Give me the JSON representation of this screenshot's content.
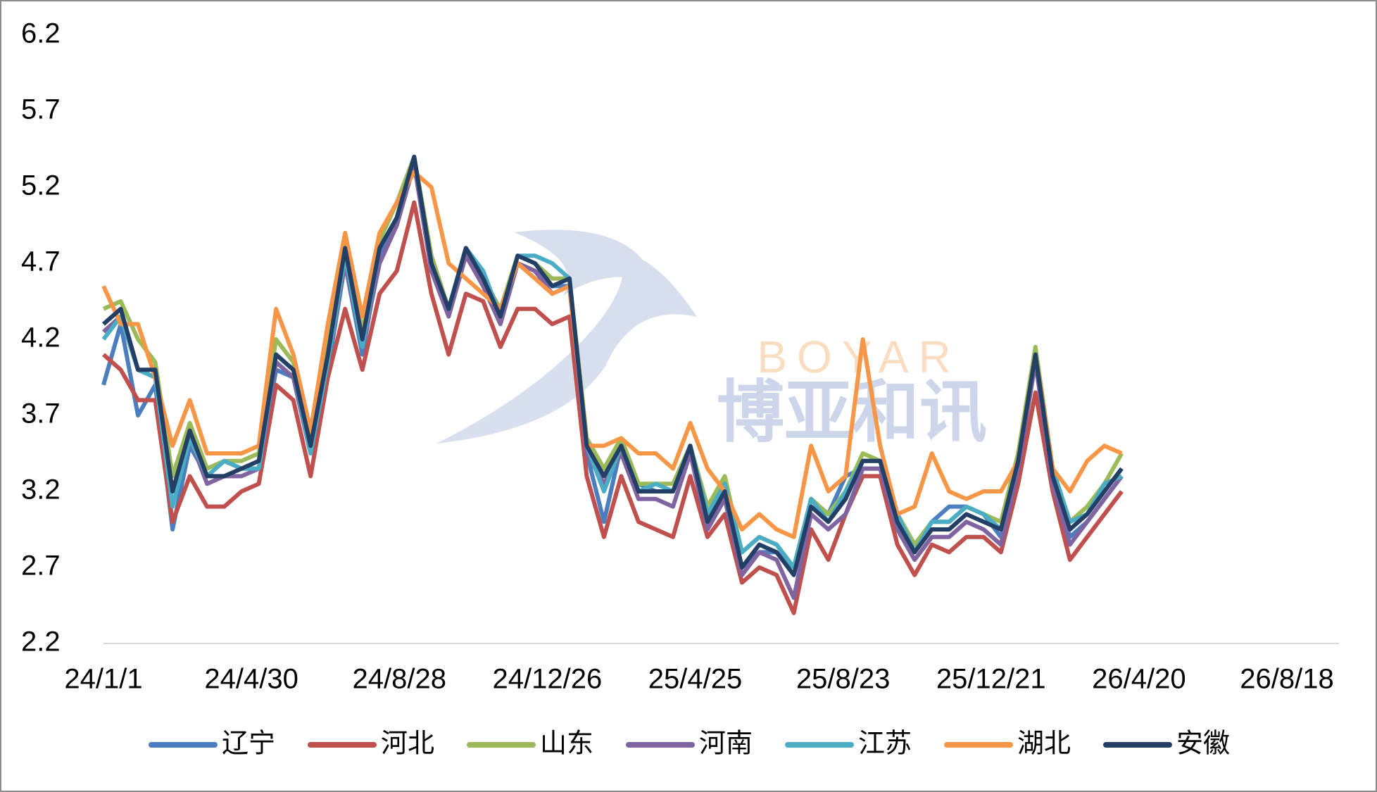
{
  "chart_data": {
    "type": "line",
    "watermark": [
      "BOYAR",
      "博亚和讯"
    ],
    "x": [
      "24/1/1",
      "24/1/15",
      "24/1/29",
      "24/2/12",
      "24/2/26",
      "24/3/11",
      "24/3/25",
      "24/4/8",
      "24/4/22",
      "24/5/6",
      "24/5/20",
      "24/6/3",
      "24/6/17",
      "24/7/1",
      "24/7/15",
      "24/7/29",
      "24/8/12",
      "24/8/26",
      "24/9/9",
      "24/9/23",
      "24/10/7",
      "24/10/21",
      "24/11/4",
      "24/11/18",
      "24/12/2",
      "24/12/16",
      "24/12/30",
      "25/1/13",
      "25/1/27",
      "25/2/10",
      "25/2/24",
      "25/3/10",
      "25/3/24",
      "25/4/7",
      "25/4/21",
      "25/5/5",
      "25/5/19",
      "25/6/2",
      "25/6/16",
      "25/6/30",
      "25/7/14",
      "25/7/28",
      "25/8/11",
      "25/8/25",
      "25/9/8",
      "25/9/22",
      "25/10/6",
      "25/10/20",
      "25/11/3",
      "25/11/17",
      "25/12/1",
      "25/12/15",
      "25/12/29",
      "26/1/12",
      "26/1/26",
      "26/2/9",
      "26/2/23",
      "26/3/9",
      "26/3/23",
      "26/4/6"
    ],
    "series": [
      {
        "name": "辽宁",
        "color": "#4a7ebf",
        "values": [
          3.9,
          4.3,
          3.7,
          3.9,
          2.95,
          3.5,
          3.3,
          3.4,
          3.35,
          3.35,
          4.0,
          3.95,
          3.45,
          4.0,
          4.7,
          4.1,
          4.75,
          5.0,
          5.4,
          4.65,
          4.4,
          4.8,
          4.6,
          4.35,
          4.7,
          4.65,
          4.55,
          4.55,
          3.45,
          3.0,
          3.5,
          3.25,
          3.2,
          3.2,
          3.45,
          3.05,
          3.2,
          2.7,
          2.8,
          2.8,
          2.7,
          3.15,
          3.05,
          3.3,
          3.35,
          3.35,
          3.05,
          2.85,
          3.0,
          3.1,
          3.1,
          3.05,
          2.9,
          3.35,
          4.1,
          3.3,
          2.9,
          3.0,
          3.15,
          3.3
        ]
      },
      {
        "name": "河北",
        "color": "#c0504d",
        "values": [
          4.1,
          4.0,
          3.8,
          3.8,
          3.0,
          3.3,
          3.1,
          3.1,
          3.2,
          3.25,
          3.9,
          3.8,
          3.3,
          3.95,
          4.4,
          4.0,
          4.5,
          4.65,
          5.1,
          4.5,
          4.1,
          4.5,
          4.45,
          4.15,
          4.4,
          4.4,
          4.3,
          4.35,
          3.3,
          2.9,
          3.3,
          3.0,
          2.95,
          2.9,
          3.3,
          2.9,
          3.05,
          2.6,
          2.7,
          2.65,
          2.4,
          2.95,
          2.75,
          3.05,
          3.3,
          3.3,
          2.85,
          2.65,
          2.85,
          2.8,
          2.9,
          2.9,
          2.8,
          3.25,
          3.85,
          3.2,
          2.75,
          2.9,
          3.05,
          3.2
        ]
      },
      {
        "name": "山东",
        "color": "#9bbb59",
        "values": [
          4.4,
          4.45,
          4.2,
          4.05,
          3.3,
          3.65,
          3.35,
          3.4,
          3.4,
          3.45,
          4.2,
          4.05,
          3.55,
          4.15,
          4.85,
          4.25,
          4.85,
          5.1,
          5.4,
          4.75,
          4.4,
          4.8,
          4.6,
          4.4,
          4.75,
          4.7,
          4.6,
          4.6,
          3.55,
          3.35,
          3.55,
          3.25,
          3.25,
          3.25,
          3.5,
          3.1,
          3.3,
          2.8,
          2.9,
          2.85,
          2.7,
          3.15,
          3.05,
          3.2,
          3.45,
          3.4,
          3.05,
          2.85,
          3.0,
          3.0,
          3.1,
          3.05,
          3.0,
          3.45,
          4.15,
          3.35,
          3.0,
          3.1,
          3.25,
          3.45
        ]
      },
      {
        "name": "河南",
        "color": "#8064a2",
        "values": [
          4.25,
          4.35,
          4.0,
          3.95,
          3.2,
          3.55,
          3.25,
          3.3,
          3.3,
          3.35,
          4.05,
          3.95,
          3.45,
          4.05,
          4.7,
          4.15,
          4.7,
          4.95,
          5.35,
          4.65,
          4.35,
          4.75,
          4.55,
          4.3,
          4.7,
          4.65,
          4.5,
          4.55,
          3.45,
          3.25,
          3.45,
          3.15,
          3.15,
          3.1,
          3.45,
          2.95,
          3.15,
          2.65,
          2.8,
          2.75,
          2.5,
          3.05,
          2.95,
          3.05,
          3.35,
          3.35,
          2.95,
          2.75,
          2.9,
          2.9,
          3.0,
          2.95,
          2.85,
          3.35,
          4.05,
          3.25,
          2.85,
          3.0,
          3.15,
          3.3
        ]
      },
      {
        "name": "江苏",
        "color": "#4bacc6",
        "values": [
          4.2,
          4.35,
          4.0,
          3.95,
          3.1,
          3.55,
          3.3,
          3.4,
          3.35,
          3.35,
          4.1,
          4.0,
          3.45,
          4.05,
          4.75,
          4.15,
          4.8,
          5.0,
          5.4,
          4.7,
          4.4,
          4.8,
          4.65,
          4.35,
          4.75,
          4.75,
          4.7,
          4.6,
          3.5,
          3.2,
          3.5,
          3.2,
          3.25,
          3.2,
          3.5,
          3.05,
          3.25,
          2.8,
          2.9,
          2.85,
          2.7,
          3.15,
          3.0,
          3.2,
          3.4,
          3.4,
          3.05,
          2.8,
          3.0,
          3.0,
          3.1,
          3.05,
          2.95,
          3.4,
          4.1,
          3.35,
          3.0,
          3.05,
          3.25,
          3.3
        ]
      },
      {
        "name": "湖北",
        "color": "#f79646",
        "values": [
          4.55,
          4.3,
          4.3,
          3.95,
          3.5,
          3.8,
          3.45,
          3.45,
          3.45,
          3.5,
          4.4,
          4.1,
          3.6,
          4.3,
          4.9,
          4.35,
          4.9,
          5.1,
          5.3,
          5.2,
          4.7,
          4.6,
          4.5,
          4.4,
          4.7,
          4.6,
          4.5,
          4.55,
          3.5,
          3.5,
          3.55,
          3.45,
          3.45,
          3.35,
          3.65,
          3.35,
          3.2,
          2.95,
          3.05,
          2.95,
          2.9,
          3.5,
          3.2,
          3.3,
          4.2,
          3.5,
          3.05,
          3.1,
          3.45,
          3.2,
          3.15,
          3.2,
          3.2,
          3.4,
          4.1,
          3.35,
          3.2,
          3.4,
          3.5,
          3.45
        ]
      },
      {
        "name": "安徽",
        "color": "#243f66",
        "values": [
          4.3,
          4.4,
          4.0,
          4.0,
          3.2,
          3.6,
          3.3,
          3.3,
          3.35,
          3.4,
          4.1,
          4.0,
          3.5,
          4.1,
          4.8,
          4.2,
          4.8,
          5.0,
          5.4,
          4.7,
          4.4,
          4.8,
          4.6,
          4.35,
          4.75,
          4.7,
          4.55,
          4.6,
          3.5,
          3.3,
          3.5,
          3.2,
          3.2,
          3.2,
          3.5,
          3.0,
          3.2,
          2.7,
          2.85,
          2.8,
          2.65,
          3.1,
          3.0,
          3.15,
          3.4,
          3.4,
          3.0,
          2.8,
          2.95,
          2.95,
          3.05,
          3.0,
          2.95,
          3.4,
          4.1,
          3.3,
          2.95,
          3.05,
          3.2,
          3.35
        ]
      }
    ],
    "xlim": [
      "24/1/1",
      "26/8/18"
    ],
    "xticks": [
      "24/1/1",
      "24/4/30",
      "24/8/28",
      "24/12/26",
      "25/4/25",
      "25/8/23",
      "25/12/21",
      "26/4/20",
      "26/8/18"
    ],
    "ylim": [
      2.2,
      6.2
    ],
    "yticks": [
      2.2,
      2.7,
      3.2,
      3.7,
      4.2,
      4.7,
      5.2,
      5.7,
      6.2
    ],
    "grid": false,
    "legend": "bottom"
  }
}
